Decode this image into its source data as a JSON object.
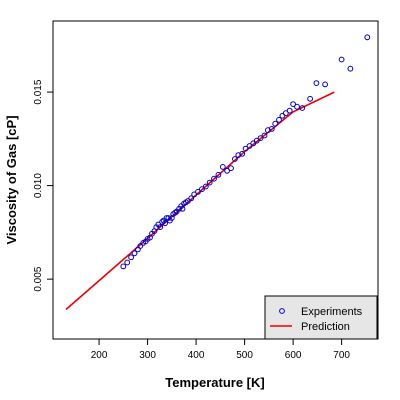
{
  "chart_data": {
    "type": "scatter",
    "title": "",
    "xlabel": "Temperature [K]",
    "ylabel": "Viscosity of Gas [cP]",
    "xlim": [
      105,
      775
    ],
    "ylim": [
      0.0018,
      0.0188
    ],
    "x_ticks": [
      200,
      300,
      400,
      500,
      600,
      700
    ],
    "y_ticks": [
      0.005,
      0.01,
      0.015
    ],
    "x_tick_labels": [
      "200",
      "300",
      "400",
      "500",
      "600",
      "700"
    ],
    "y_tick_labels": [
      "0.005",
      "0.010",
      "0.015"
    ],
    "grid": false,
    "legend_position": "bottom-right",
    "series": [
      {
        "name": "Experiments",
        "kind": "points",
        "marker": "open-circle",
        "color": "#0000CC",
        "points": [
          [
            250,
            0.00568
          ],
          [
            258,
            0.00589
          ],
          [
            266,
            0.00617
          ],
          [
            273,
            0.00638
          ],
          [
            280,
            0.00659
          ],
          [
            285,
            0.00677
          ],
          [
            291,
            0.00694
          ],
          [
            296,
            0.00701
          ],
          [
            300,
            0.00715
          ],
          [
            305,
            0.00722
          ],
          [
            309,
            0.00743
          ],
          [
            314,
            0.00757
          ],
          [
            318,
            0.00778
          ],
          [
            322,
            0.00792
          ],
          [
            326,
            0.00778
          ],
          [
            330,
            0.00806
          ],
          [
            333,
            0.00813
          ],
          [
            336,
            0.00799
          ],
          [
            339,
            0.00827
          ],
          [
            343,
            0.00827
          ],
          [
            346,
            0.00813
          ],
          [
            350,
            0.00827
          ],
          [
            353,
            0.00848
          ],
          [
            357,
            0.00855
          ],
          [
            360,
            0.00862
          ],
          [
            365,
            0.00876
          ],
          [
            369,
            0.0089
          ],
          [
            372,
            0.00876
          ],
          [
            375,
            0.00904
          ],
          [
            379,
            0.00911
          ],
          [
            383,
            0.00918
          ],
          [
            390,
            0.00932
          ],
          [
            396,
            0.00953
          ],
          [
            404,
            0.00967
          ],
          [
            412,
            0.00981
          ],
          [
            420,
            0.00995
          ],
          [
            428,
            0.01016
          ],
          [
            437,
            0.01037
          ],
          [
            446,
            0.01058
          ],
          [
            455,
            0.011
          ],
          [
            464,
            0.01079
          ],
          [
            472,
            0.01093
          ],
          [
            480,
            0.01142
          ],
          [
            487,
            0.01163
          ],
          [
            495,
            0.0117
          ],
          [
            502,
            0.01198
          ],
          [
            510,
            0.01212
          ],
          [
            518,
            0.01226
          ],
          [
            525,
            0.0124
          ],
          [
            533,
            0.01254
          ],
          [
            541,
            0.01268
          ],
          [
            548,
            0.01296
          ],
          [
            556,
            0.01303
          ],
          [
            563,
            0.01331
          ],
          [
            571,
            0.01352
          ],
          [
            578,
            0.01373
          ],
          [
            585,
            0.01387
          ],
          [
            593,
            0.01401
          ],
          [
            600,
            0.01436
          ],
          [
            608,
            0.01422
          ],
          [
            619,
            0.01415
          ],
          [
            635,
            0.01464
          ],
          [
            648,
            0.01548
          ],
          [
            666,
            0.01541
          ],
          [
            700,
            0.01674
          ],
          [
            718,
            0.01625
          ],
          [
            753,
            0.01793
          ]
        ]
      },
      {
        "name": "Prediction",
        "kind": "line",
        "color": "#EE0000",
        "points": [
          [
            132,
            0.00338
          ],
          [
            200,
            0.00492
          ],
          [
            300,
            0.00718
          ],
          [
            400,
            0.0095
          ],
          [
            500,
            0.01182
          ],
          [
            600,
            0.01394
          ],
          [
            685,
            0.015
          ]
        ]
      }
    ]
  }
}
